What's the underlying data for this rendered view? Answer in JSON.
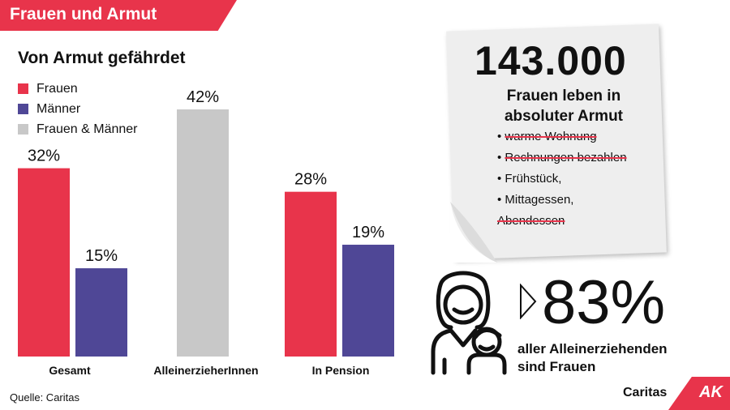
{
  "banner": {
    "title": "Frauen und Armut"
  },
  "subtitle": "Von Armut gefährdet",
  "legend": [
    {
      "label": "Frauen",
      "color": "#e8344b"
    },
    {
      "label": "Männer",
      "color": "#4f4796"
    },
    {
      "label": "Frauen & Männer",
      "color": "#c8c8c8"
    }
  ],
  "chart_data": {
    "type": "bar",
    "title": "Von Armut gefährdet",
    "categories": [
      "Gesamt",
      "AlleinerzieherInnen",
      "In Pension"
    ],
    "unit": "%",
    "ylim": [
      0,
      42
    ],
    "grid": false,
    "legend_position": "top-left",
    "bars": [
      {
        "category": "Gesamt",
        "series": "Frauen",
        "value": 32,
        "label": "32%",
        "color": "#e8344b"
      },
      {
        "category": "Gesamt",
        "series": "Männer",
        "value": 15,
        "label": "15%",
        "color": "#4f4796"
      },
      {
        "category": "AlleinerzieherInnen",
        "series": "Frauen & Männer",
        "value": 42,
        "label": "42%",
        "color": "#c8c8c8"
      },
      {
        "category": "In Pension",
        "series": "Frauen",
        "value": 28,
        "label": "28%",
        "color": "#e8344b"
      },
      {
        "category": "In Pension",
        "series": "Männer",
        "value": 19,
        "label": "19%",
        "color": "#4f4796"
      }
    ]
  },
  "note": {
    "number": "143.000",
    "text_line1": "Frauen leben in",
    "text_line2": "absoluter Armut",
    "items": [
      {
        "label": "warme Wohnung",
        "struck": true
      },
      {
        "label": "Rechnungen bezahlen",
        "struck": true
      },
      {
        "label": "Frühstück,",
        "struck": false
      },
      {
        "label": "Mittagessen,",
        "struck": false
      },
      {
        "label": "Abendessen",
        "struck": true
      }
    ]
  },
  "stat": {
    "percent": "83%",
    "line1": "aller Alleinerziehenden",
    "line2": "sind Frauen"
  },
  "icons": {
    "arrow": "chevron-right-icon",
    "family": "mother-child-icon"
  },
  "source": "Quelle: Caritas",
  "logos": {
    "caritas": "Caritas",
    "ak": "AK"
  }
}
